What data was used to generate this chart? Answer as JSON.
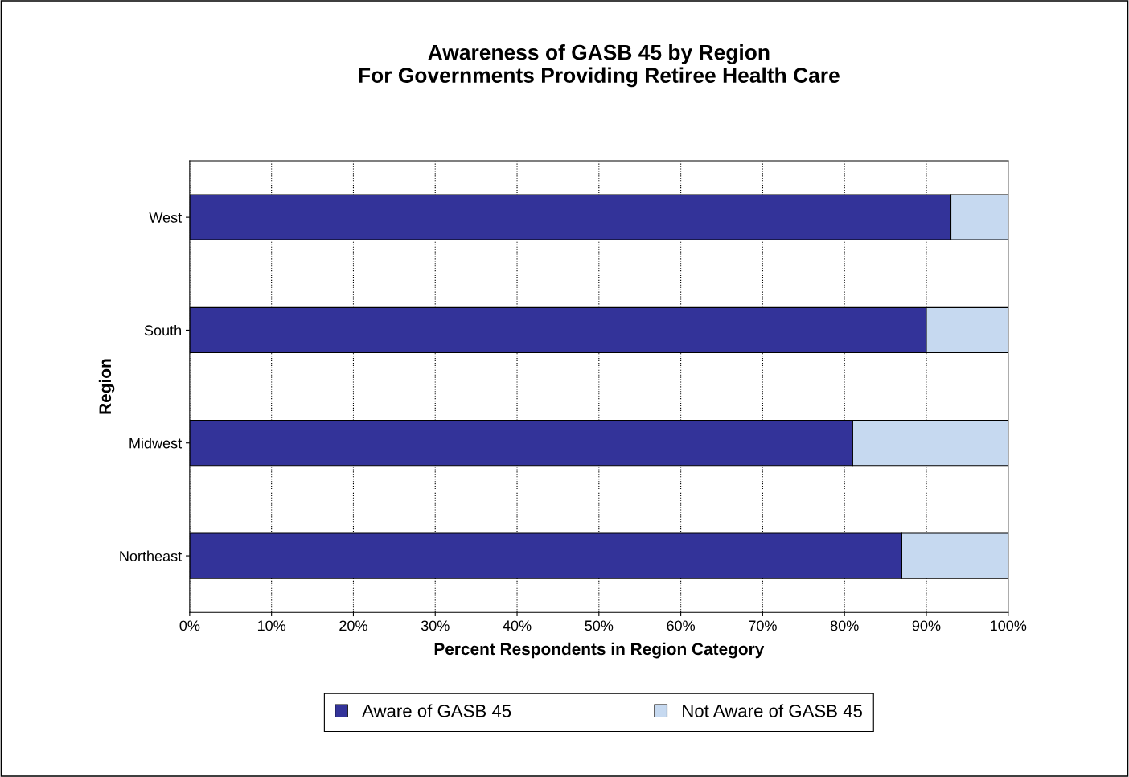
{
  "chart_data": {
    "type": "bar",
    "orientation": "horizontal",
    "stacked": true,
    "title": "Awareness of GASB 45 by Region\nFor Governments Providing Retiree Health Care",
    "xlabel": "Percent Respondents in Region Category",
    "ylabel": "Region",
    "categories": [
      "West",
      "South",
      "Midwest",
      "Northeast"
    ],
    "series": [
      {
        "name": "Aware of GASB 45",
        "color": "#333399",
        "values": [
          93,
          90,
          81,
          87
        ]
      },
      {
        "name": "Not Aware of GASB 45",
        "color": "#c6d9f0",
        "values": [
          7,
          10,
          19,
          13
        ]
      }
    ],
    "xlim": [
      0,
      100
    ],
    "xticks": [
      {
        "value": 0,
        "label": "0%"
      },
      {
        "value": 10,
        "label": "10%"
      },
      {
        "value": 20,
        "label": "20%"
      },
      {
        "value": 30,
        "label": "30%"
      },
      {
        "value": 40,
        "label": "40%"
      },
      {
        "value": 50,
        "label": "50%"
      },
      {
        "value": 60,
        "label": "60%"
      },
      {
        "value": 70,
        "label": "70%"
      },
      {
        "value": 80,
        "label": "80%"
      },
      {
        "value": 90,
        "label": "90%"
      },
      {
        "value": 100,
        "label": "100%"
      }
    ],
    "grid": "x",
    "legend": "bottom"
  }
}
